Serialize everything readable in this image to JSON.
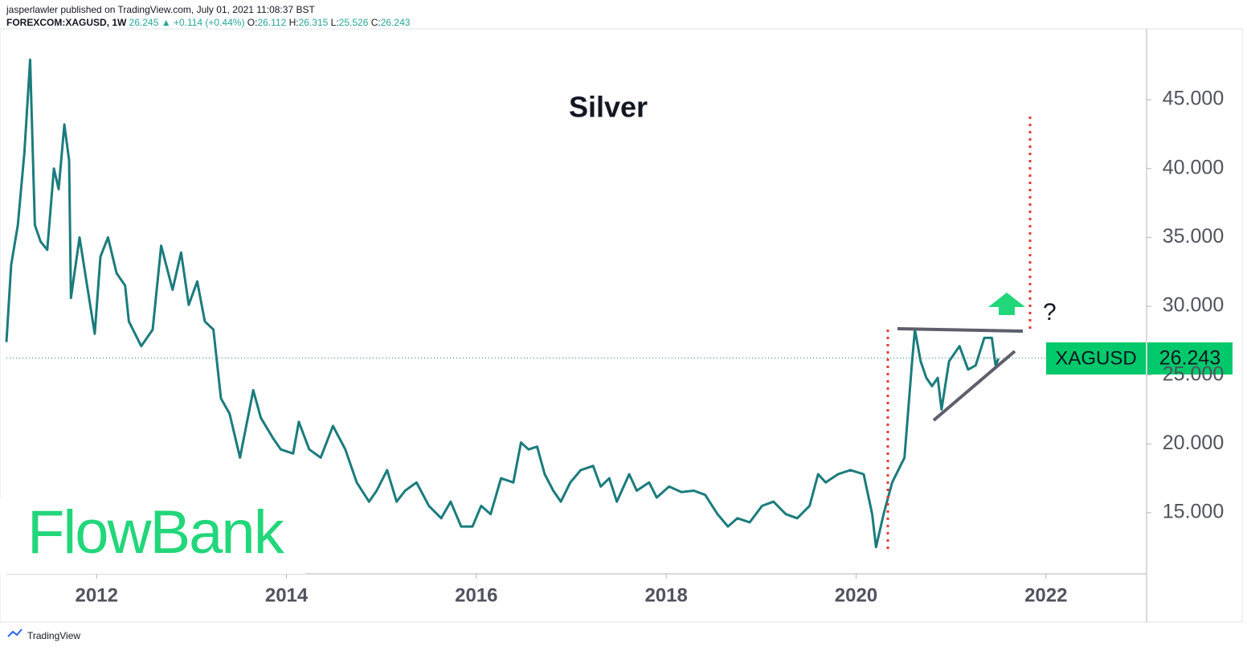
{
  "header": {
    "line1": "jasperlawler published on TradingView.com, July 01, 2021 11:08:37 BST",
    "line2": [
      {
        "text": "FOREXCOM:XAGUSD, 1W ",
        "color": "#131722"
      },
      {
        "text": "26.245 ",
        "color": "#26a69a"
      },
      {
        "text": "▲ +0.114 (+0.44%) ",
        "color": "#26a69a"
      },
      {
        "text": "O:",
        "color": "#131722"
      },
      {
        "text": "26.112 ",
        "color": "#26a69a"
      },
      {
        "text": "H:",
        "color": "#131722"
      },
      {
        "text": "26.315 ",
        "color": "#26a69a"
      },
      {
        "text": "L:",
        "color": "#131722"
      },
      {
        "text": "25.526 ",
        "color": "#26a69a"
      },
      {
        "text": "C:",
        "color": "#131722"
      },
      {
        "text": "26.243",
        "color": "#26a69a"
      }
    ]
  },
  "logo": "FlowBank",
  "footer": "TradingView",
  "chart_data": {
    "type": "line",
    "title": "Silver",
    "annotation": "?",
    "color": "#1b7b7c",
    "x": [
      2011.05,
      2011.1,
      2011.17,
      2011.24,
      2011.3,
      2011.35,
      2011.41,
      2011.48,
      2011.55,
      2011.6,
      2011.66,
      2011.71,
      2011.73,
      2011.82,
      2011.9,
      2011.98,
      2012.04,
      2012.12,
      2012.21,
      2012.3,
      2012.34,
      2012.47,
      2012.59,
      2012.68,
      2012.8,
      2012.89,
      2012.97,
      2013.06,
      2013.14,
      2013.23,
      2013.31,
      2013.4,
      2013.51,
      2013.65,
      2013.73,
      2013.86,
      2013.94,
      2014.07,
      2014.13,
      2014.24,
      2014.36,
      2014.49,
      2014.62,
      2014.74,
      2014.87,
      2014.95,
      2015.06,
      2015.16,
      2015.25,
      2015.37,
      2015.5,
      2015.63,
      2015.73,
      2015.84,
      2015.96,
      2016.05,
      2016.15,
      2016.26,
      2016.39,
      2016.47,
      2016.55,
      2016.64,
      2016.72,
      2016.81,
      2016.89,
      2016.99,
      2017.1,
      2017.23,
      2017.31,
      2017.4,
      2017.48,
      2017.61,
      2017.69,
      2017.82,
      2017.9,
      2018.03,
      2018.16,
      2018.29,
      2018.41,
      2018.54,
      2018.65,
      2018.75,
      2018.88,
      2019.01,
      2019.13,
      2019.26,
      2019.38,
      2019.51,
      2019.6,
      2019.68,
      2019.81,
      2019.94,
      2020.08,
      2020.17,
      2020.21,
      2020.29,
      2020.38,
      2020.51,
      2020.59,
      2020.62,
      2020.68,
      2020.74,
      2020.8,
      2020.86,
      2020.9,
      2020.98,
      2021.09,
      2021.18,
      2021.26,
      2021.35,
      2021.43,
      2021.47,
      2021.5
    ],
    "values": [
      27.4,
      33,
      35.9,
      41.2,
      47.9,
      35.9,
      34.7,
      34.1,
      40,
      38.5,
      43.2,
      40.6,
      30.6,
      35,
      31.5,
      28,
      33.6,
      35,
      32.4,
      31.5,
      28.9,
      27.1,
      28.3,
      34.4,
      31.2,
      33.9,
      30.1,
      31.8,
      28.9,
      28.3,
      23.3,
      22.2,
      19,
      23.9,
      21.9,
      20.4,
      19.6,
      19.3,
      21.6,
      19.6,
      19,
      21.3,
      19.6,
      17.2,
      15.8,
      16.6,
      18.1,
      15.8,
      16.6,
      17.2,
      15.5,
      14.6,
      15.8,
      14,
      14,
      15.5,
      14.9,
      17.5,
      17.2,
      20.1,
      19.6,
      19.8,
      17.8,
      16.6,
      15.8,
      17.2,
      18.1,
      18.4,
      16.9,
      17.5,
      15.8,
      17.8,
      16.6,
      17.2,
      16.1,
      16.9,
      16.5,
      16.6,
      16.3,
      14.9,
      14,
      14.6,
      14.3,
      15.5,
      15.8,
      14.9,
      14.6,
      15.5,
      17.8,
      17.2,
      17.8,
      18.1,
      17.8,
      14.9,
      12.5,
      14.9,
      17.2,
      19,
      26,
      28.3,
      26,
      24.8,
      24.2,
      24.8,
      22.5,
      26,
      27.1,
      25.4,
      25.7,
      27.7,
      27.7,
      25.7,
      26.2
    ],
    "xlim": [
      2011.05,
      2023.06
    ],
    "xticks": [
      2012,
      2014,
      2016,
      2018,
      2020,
      2022
    ],
    "ylim": [
      10.56,
      49.91
    ],
    "yticks": [
      {
        "value": 15,
        "label": "15.000"
      },
      {
        "value": 20,
        "label": "20.000"
      },
      {
        "value": 25,
        "label": "25.000"
      },
      {
        "value": 30,
        "label": "30.000"
      },
      {
        "value": 35,
        "label": "35.000"
      },
      {
        "value": 40,
        "label": "40.000"
      },
      {
        "value": 45,
        "label": "45.000"
      }
    ],
    "price_label": {
      "symbol": "XAGUSD",
      "value": 26.243,
      "label": "26.243"
    }
  }
}
